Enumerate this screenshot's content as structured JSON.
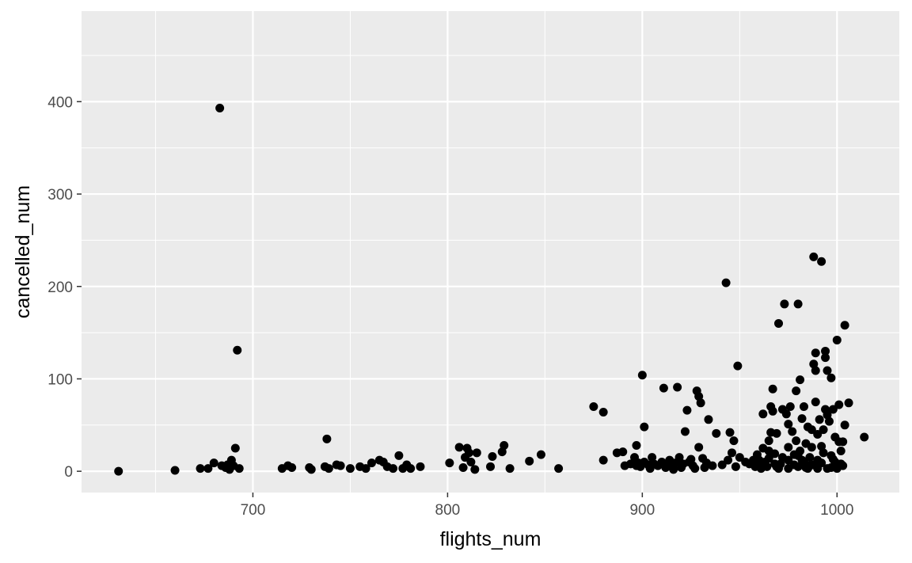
{
  "chart_data": {
    "type": "scatter",
    "title": "",
    "xlabel": "flights_num",
    "ylabel": "cancelled_num",
    "xlim": [
      612,
      1032
    ],
    "ylim": [
      -23,
      498
    ],
    "x_ticks": [
      700,
      800,
      900,
      1000
    ],
    "y_ticks": [
      0,
      100,
      200,
      300,
      400
    ],
    "grid": true,
    "legend": "none",
    "colors": {
      "panel": "#ebebeb",
      "grid": "#ffffff",
      "point": "#000000",
      "tick_text": "#4d4d4d",
      "tick_mark": "#333333",
      "title_text": "#000000"
    },
    "points": [
      [
        631,
        0
      ],
      [
        660,
        1
      ],
      [
        673,
        3
      ],
      [
        677,
        3
      ],
      [
        680,
        9
      ],
      [
        683,
        393
      ],
      [
        684,
        6
      ],
      [
        686,
        4
      ],
      [
        687,
        7
      ],
      [
        688,
        2
      ],
      [
        689,
        12
      ],
      [
        690,
        6
      ],
      [
        691,
        25
      ],
      [
        692,
        131
      ],
      [
        693,
        3
      ],
      [
        715,
        3
      ],
      [
        718,
        6
      ],
      [
        720,
        4
      ],
      [
        729,
        4
      ],
      [
        730,
        2
      ],
      [
        737,
        5
      ],
      [
        738,
        35
      ],
      [
        739,
        3
      ],
      [
        743,
        7
      ],
      [
        745,
        6
      ],
      [
        750,
        3
      ],
      [
        755,
        5
      ],
      [
        758,
        3
      ],
      [
        761,
        9
      ],
      [
        765,
        12
      ],
      [
        767,
        10
      ],
      [
        769,
        5
      ],
      [
        772,
        3
      ],
      [
        775,
        17
      ],
      [
        777,
        3
      ],
      [
        779,
        7
      ],
      [
        781,
        3
      ],
      [
        786,
        5
      ],
      [
        801,
        9
      ],
      [
        806,
        26
      ],
      [
        808,
        4
      ],
      [
        809,
        15
      ],
      [
        810,
        25
      ],
      [
        811,
        20
      ],
      [
        812,
        10
      ],
      [
        814,
        2
      ],
      [
        815,
        20
      ],
      [
        822,
        5
      ],
      [
        823,
        16
      ],
      [
        828,
        21
      ],
      [
        829,
        28
      ],
      [
        832,
        3
      ],
      [
        842,
        11
      ],
      [
        848,
        18
      ],
      [
        857,
        3
      ],
      [
        875,
        70
      ],
      [
        880,
        64
      ],
      [
        880,
        12
      ],
      [
        887,
        20
      ],
      [
        890,
        21
      ],
      [
        891,
        6
      ],
      [
        894,
        8
      ],
      [
        896,
        15
      ],
      [
        897,
        28
      ],
      [
        897,
        6
      ],
      [
        898,
        9
      ],
      [
        899,
        5
      ],
      [
        900,
        104
      ],
      [
        901,
        48
      ],
      [
        901,
        10
      ],
      [
        903,
        7
      ],
      [
        904,
        3
      ],
      [
        905,
        15
      ],
      [
        906,
        8
      ],
      [
        908,
        6
      ],
      [
        910,
        10
      ],
      [
        911,
        90
      ],
      [
        912,
        4
      ],
      [
        913,
        8
      ],
      [
        914,
        12
      ],
      [
        915,
        5
      ],
      [
        916,
        2
      ],
      [
        917,
        9
      ],
      [
        918,
        91
      ],
      [
        919,
        15
      ],
      [
        920,
        4
      ],
      [
        921,
        8
      ],
      [
        922,
        43
      ],
      [
        923,
        66
      ],
      [
        924,
        10
      ],
      [
        925,
        13
      ],
      [
        926,
        6
      ],
      [
        927,
        3
      ],
      [
        928,
        87
      ],
      [
        929,
        81
      ],
      [
        929,
        26
      ],
      [
        930,
        74
      ],
      [
        931,
        14
      ],
      [
        932,
        4
      ],
      [
        933,
        9
      ],
      [
        934,
        56
      ],
      [
        936,
        6
      ],
      [
        938,
        41
      ],
      [
        941,
        7
      ],
      [
        943,
        204
      ],
      [
        944,
        12
      ],
      [
        945,
        42
      ],
      [
        946,
        20
      ],
      [
        947,
        33
      ],
      [
        948,
        5
      ],
      [
        949,
        114
      ],
      [
        950,
        15
      ],
      [
        953,
        10
      ],
      [
        955,
        8
      ],
      [
        957,
        12
      ],
      [
        958,
        5
      ],
      [
        959,
        18
      ],
      [
        960,
        8
      ],
      [
        961,
        3
      ],
      [
        962,
        25
      ],
      [
        962,
        62
      ],
      [
        963,
        10
      ],
      [
        964,
        5
      ],
      [
        965,
        14
      ],
      [
        965,
        33
      ],
      [
        966,
        42
      ],
      [
        966,
        70
      ],
      [
        967,
        89
      ],
      [
        967,
        65
      ],
      [
        968,
        19
      ],
      [
        969,
        41
      ],
      [
        969,
        5
      ],
      [
        970,
        160
      ],
      [
        971,
        8
      ],
      [
        972,
        67
      ],
      [
        973,
        181
      ],
      [
        974,
        62
      ],
      [
        975,
        51
      ],
      [
        975,
        12
      ],
      [
        976,
        70
      ],
      [
        977,
        43
      ],
      [
        978,
        18
      ],
      [
        979,
        87
      ],
      [
        979,
        33
      ],
      [
        980,
        181
      ],
      [
        980,
        5
      ],
      [
        981,
        99
      ],
      [
        981,
        22
      ],
      [
        982,
        57
      ],
      [
        983,
        70
      ],
      [
        983,
        10
      ],
      [
        984,
        30
      ],
      [
        985,
        48
      ],
      [
        986,
        15
      ],
      [
        987,
        26
      ],
      [
        987,
        45
      ],
      [
        988,
        232
      ],
      [
        988,
        116
      ],
      [
        989,
        128
      ],
      [
        989,
        109
      ],
      [
        989,
        75
      ],
      [
        990,
        40
      ],
      [
        990,
        12
      ],
      [
        991,
        56
      ],
      [
        992,
        227
      ],
      [
        992,
        27
      ],
      [
        993,
        45
      ],
      [
        994,
        130
      ],
      [
        994,
        123
      ],
      [
        994,
        67
      ],
      [
        995,
        109
      ],
      [
        995,
        61
      ],
      [
        996,
        54
      ],
      [
        997,
        101
      ],
      [
        997,
        17
      ],
      [
        998,
        67
      ],
      [
        999,
        37
      ],
      [
        999,
        10
      ],
      [
        1000,
        142
      ],
      [
        1001,
        32
      ],
      [
        1001,
        72
      ],
      [
        1002,
        22
      ],
      [
        1003,
        6
      ],
      [
        1003,
        32
      ],
      [
        1004,
        158
      ],
      [
        1004,
        50
      ],
      [
        1006,
        74
      ],
      [
        1014,
        37
      ],
      [
        960,
        12
      ],
      [
        970,
        3
      ],
      [
        975,
        3
      ],
      [
        985,
        3
      ],
      [
        990,
        3
      ],
      [
        995,
        3
      ],
      [
        1000,
        3
      ],
      [
        965,
        22
      ],
      [
        968,
        8
      ],
      [
        972,
        15
      ],
      [
        978,
        7
      ],
      [
        982,
        12
      ],
      [
        986,
        6
      ],
      [
        992,
        9
      ],
      [
        998,
        13
      ],
      [
        1002,
        8
      ],
      [
        975,
        26
      ],
      [
        980,
        17
      ],
      [
        984,
        4
      ],
      [
        988,
        7
      ],
      [
        993,
        20
      ],
      [
        997,
        4
      ]
    ]
  }
}
